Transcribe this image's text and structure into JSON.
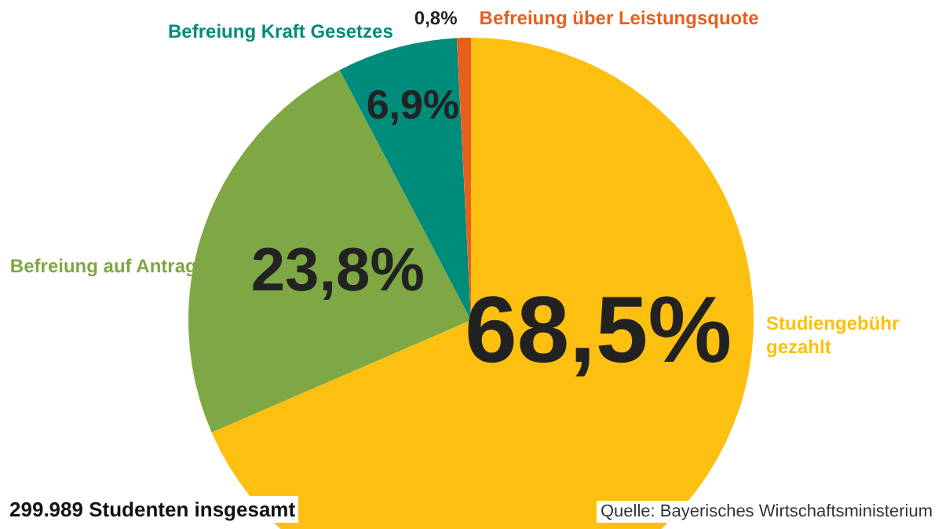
{
  "chart_data": {
    "type": "pie",
    "categories": [
      "Studiengebühr gezahlt",
      "Befreiung auf Antrag",
      "Befreiung Kraft Gesetzes",
      "Befreiung über Leistungsquote"
    ],
    "values": [
      68.5,
      23.8,
      6.9,
      0.8
    ],
    "colors": [
      "#fdc010",
      "#7ea843",
      "#008c7a",
      "#e8601c"
    ],
    "value_labels": [
      "68,5%",
      "23,8%",
      "6,9%",
      "0,8%"
    ],
    "annotations": [
      "299.989 Studenten insgesamt",
      "Quelle: Bayerisches Wirtschaftsministerium"
    ],
    "legend": false
  }
}
